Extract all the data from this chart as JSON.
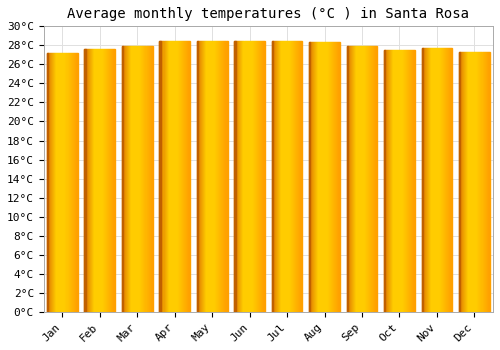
{
  "title": "Average monthly temperatures (°C ) in Santa Rosa",
  "months": [
    "Jan",
    "Feb",
    "Mar",
    "Apr",
    "May",
    "Jun",
    "Jul",
    "Aug",
    "Sep",
    "Oct",
    "Nov",
    "Dec"
  ],
  "values": [
    27.2,
    27.6,
    27.9,
    28.5,
    28.5,
    28.5,
    28.5,
    28.3,
    27.9,
    27.5,
    27.7,
    27.3
  ],
  "ylim": [
    0,
    30
  ],
  "yticks": [
    0,
    2,
    4,
    6,
    8,
    10,
    12,
    14,
    16,
    18,
    20,
    22,
    24,
    26,
    28,
    30
  ],
  "bar_color_left": "#E07800",
  "bar_color_center": "#FFCC00",
  "bar_color_right": "#FFB300",
  "bar_edge_color": "#C06000",
  "background_color": "#FFFFFF",
  "plot_bg_color": "#FFFFFF",
  "grid_color": "#E0E0E0",
  "title_fontsize": 10,
  "tick_fontsize": 8,
  "title_font": "monospace",
  "tick_font": "monospace",
  "bar_width": 0.82
}
